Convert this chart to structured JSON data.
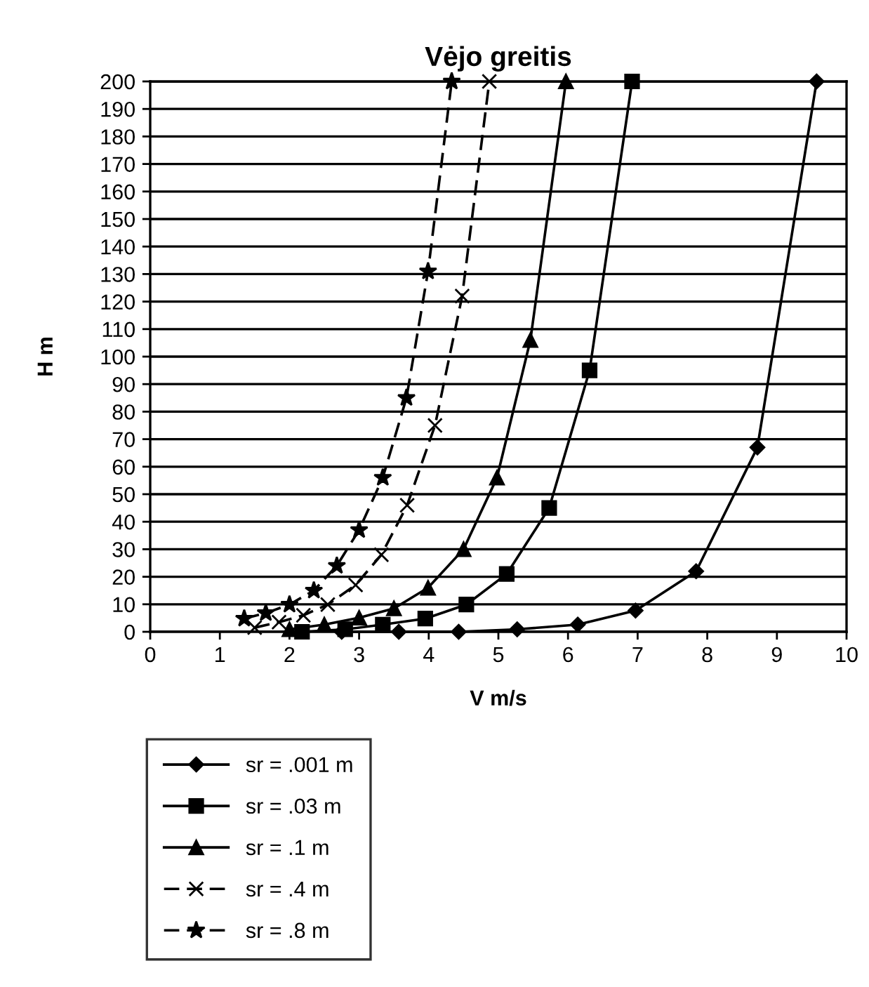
{
  "chart_data": {
    "type": "line",
    "title": "Vėjo greitis",
    "xlabel": "V m/s",
    "ylabel": "H m",
    "xlim": [
      0,
      10
    ],
    "xticks": [
      0,
      1,
      2,
      3,
      4,
      5,
      6,
      7,
      8,
      9,
      10
    ],
    "ylim": [
      0,
      200
    ],
    "yticks": [
      0,
      10,
      20,
      30,
      40,
      50,
      60,
      70,
      80,
      90,
      100,
      110,
      120,
      130,
      140,
      150,
      160,
      170,
      180,
      190,
      200
    ],
    "grid": "y",
    "legend": "bottom left",
    "series": [
      {
        "name": "sr = .001 m",
        "color": "#000000",
        "marker": "diamond",
        "line_style": "solid",
        "x": [
          2.75,
          3.57,
          4.43,
          5.27,
          6.14,
          6.97,
          7.84,
          8.72,
          9.57
        ],
        "values": [
          0,
          0,
          0,
          0.9,
          2.6,
          7.7,
          22,
          67,
          200
        ]
      },
      {
        "name": "sr = .03 m",
        "color": "#000000",
        "marker": "square",
        "line_style": "solid",
        "x": [
          2.18,
          2.8,
          3.34,
          3.95,
          4.54,
          5.12,
          5.73,
          6.31,
          6.92
        ],
        "values": [
          0,
          0.9,
          2.6,
          4.8,
          9.9,
          21,
          45,
          95,
          200
        ]
      },
      {
        "name": "sr = .1 m",
        "color": "#000000",
        "marker": "triangle",
        "line_style": "solid",
        "x": [
          2.0,
          2.5,
          3.0,
          3.5,
          3.99,
          4.5,
          4.98,
          5.46,
          5.97
        ],
        "values": [
          0.9,
          2.6,
          5.1,
          8.5,
          16,
          30,
          56,
          106,
          200
        ]
      },
      {
        "name": "sr = .4 m",
        "color": "#000000",
        "marker": "cross",
        "line_style": "dashed",
        "x": [
          1.5,
          1.85,
          2.2,
          2.55,
          2.95,
          3.32,
          3.69,
          4.09,
          4.48,
          4.87
        ],
        "values": [
          1.5,
          3.5,
          6,
          9.9,
          17,
          28,
          46,
          75,
          122,
          200
        ]
      },
      {
        "name": "sr = .8 m",
        "color": "#000000",
        "marker": "star",
        "line_style": "dashed",
        "x": [
          1.35,
          1.66,
          2.0,
          2.35,
          2.68,
          3.0,
          3.34,
          3.68,
          3.99,
          4.33
        ],
        "values": [
          4.8,
          6.8,
          9.9,
          15,
          24,
          37,
          56,
          85,
          131,
          200
        ]
      }
    ]
  }
}
